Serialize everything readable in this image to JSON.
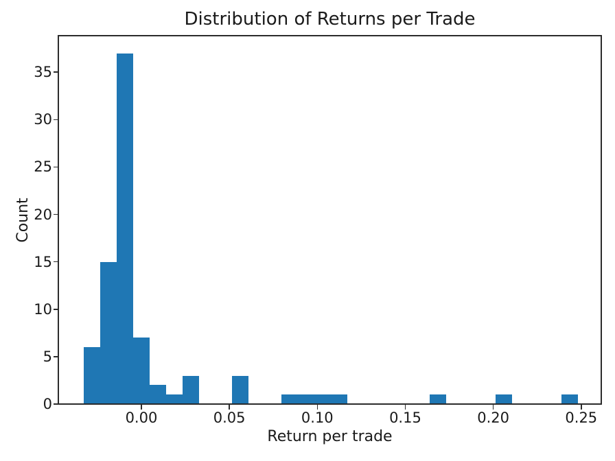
{
  "figure": {
    "background": "#ffffff",
    "text_color": "#1a1a1a",
    "axis_color": "#2b2b2b"
  },
  "chart_data": {
    "type": "bar",
    "subtype": "histogram",
    "title": "Distribution of Returns per Trade",
    "xlabel": "Return per trade",
    "ylabel": "Count",
    "bar_color": "#1f77b4",
    "grid": false,
    "legend": null,
    "bin_start": -0.0328,
    "bin_width": 0.00936,
    "counts": [
      6,
      15,
      37,
      7,
      2,
      1,
      3,
      0,
      0,
      3,
      0,
      0,
      1,
      1,
      1,
      1,
      0,
      0,
      0,
      0,
      0,
      1,
      0,
      0,
      0,
      1,
      0,
      0,
      0,
      1
    ],
    "xlim": [
      -0.0468,
      0.261
    ],
    "ylim": [
      0,
      38.85
    ],
    "x_ticks": [
      {
        "value": 0.0,
        "label": "0.00"
      },
      {
        "value": 0.05,
        "label": "0.05"
      },
      {
        "value": 0.1,
        "label": "0.10"
      },
      {
        "value": 0.15,
        "label": "0.15"
      },
      {
        "value": 0.2,
        "label": "0.20"
      },
      {
        "value": 0.25,
        "label": "0.25"
      }
    ],
    "y_ticks": [
      {
        "value": 0,
        "label": "0"
      },
      {
        "value": 5,
        "label": "5"
      },
      {
        "value": 10,
        "label": "10"
      },
      {
        "value": 15,
        "label": "15"
      },
      {
        "value": 20,
        "label": "20"
      },
      {
        "value": 25,
        "label": "25"
      },
      {
        "value": 30,
        "label": "30"
      },
      {
        "value": 35,
        "label": "35"
      }
    ]
  }
}
